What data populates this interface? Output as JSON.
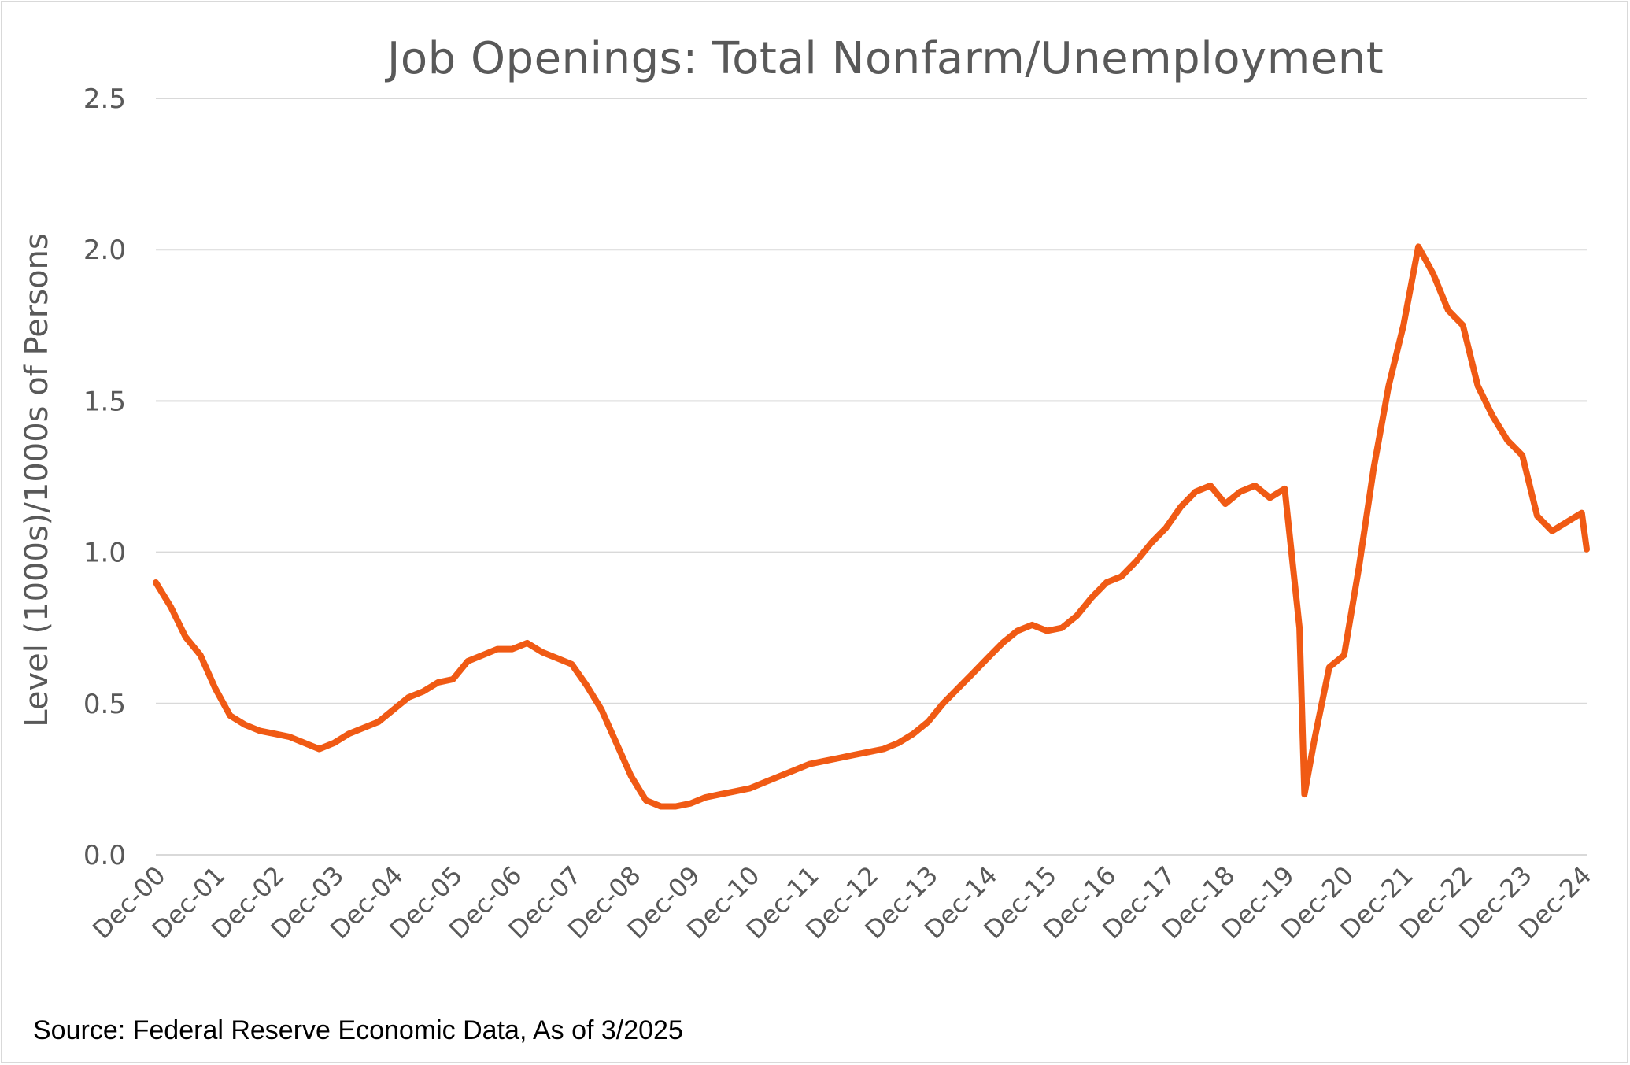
{
  "chart_data": {
    "type": "line",
    "title": "Job Openings: Total Nonfarm/Unemployment",
    "ylabel": "Level (1000s)/1000s of Persons",
    "xlabel": "",
    "source": "Source: Federal Reserve Economic Data, As of 3/2025",
    "ylim": [
      0,
      2.5
    ],
    "y_ticks": [
      "0.0",
      "0.5",
      "1.0",
      "1.5",
      "2.0",
      "2.5"
    ],
    "x_ticks": [
      "Dec-00",
      "Dec-01",
      "Dec-02",
      "Dec-03",
      "Dec-04",
      "Dec-05",
      "Dec-06",
      "Dec-07",
      "Dec-08",
      "Dec-09",
      "Dec-10",
      "Dec-11",
      "Dec-12",
      "Dec-13",
      "Dec-14",
      "Dec-15",
      "Dec-16",
      "Dec-17",
      "Dec-18",
      "Dec-19",
      "Dec-20",
      "Dec-21",
      "Dec-22",
      "Dec-23",
      "Dec-24"
    ],
    "grid": "horizontal",
    "line_color": "#f05a14",
    "series": [
      {
        "x": [
          "Dec-00",
          "Mar-01",
          "Jun-01",
          "Sep-01",
          "Dec-01",
          "Mar-02",
          "Jun-02",
          "Sep-02",
          "Dec-02",
          "Mar-03",
          "Jun-03",
          "Sep-03",
          "Dec-03",
          "Mar-04",
          "Jun-04",
          "Sep-04",
          "Dec-04",
          "Mar-05",
          "Jun-05",
          "Sep-05",
          "Dec-05",
          "Mar-06",
          "Jun-06",
          "Sep-06",
          "Dec-06",
          "Mar-07",
          "Jun-07",
          "Sep-07",
          "Dec-07",
          "Mar-08",
          "Jun-08",
          "Sep-08",
          "Dec-08",
          "Mar-09",
          "Jun-09",
          "Sep-09",
          "Dec-09",
          "Mar-10",
          "Jun-10",
          "Sep-10",
          "Dec-10",
          "Mar-11",
          "Jun-11",
          "Sep-11",
          "Dec-11",
          "Mar-12",
          "Jun-12",
          "Sep-12",
          "Dec-12",
          "Mar-13",
          "Jun-13",
          "Sep-13",
          "Dec-13",
          "Mar-14",
          "Jun-14",
          "Sep-14",
          "Dec-14",
          "Mar-15",
          "Jun-15",
          "Sep-15",
          "Dec-15",
          "Mar-16",
          "Jun-16",
          "Sep-16",
          "Dec-16",
          "Mar-17",
          "Jun-17",
          "Sep-17",
          "Dec-17",
          "Mar-18",
          "Jun-18",
          "Sep-18",
          "Dec-18",
          "Mar-19",
          "Jun-19",
          "Sep-19",
          "Dec-19",
          "Mar-20",
          "Apr-20",
          "Jun-20",
          "Sep-20",
          "Dec-20",
          "Mar-21",
          "Jun-21",
          "Sep-21",
          "Dec-21",
          "Mar-22",
          "Jun-22",
          "Sep-22",
          "Dec-22",
          "Mar-23",
          "Jun-23",
          "Sep-23",
          "Dec-23",
          "Mar-24",
          "Jun-24",
          "Sep-24",
          "Dec-24",
          "Jan-25"
        ],
        "values": [
          0.9,
          0.82,
          0.72,
          0.66,
          0.55,
          0.46,
          0.43,
          0.41,
          0.4,
          0.39,
          0.37,
          0.35,
          0.37,
          0.4,
          0.42,
          0.44,
          0.48,
          0.52,
          0.54,
          0.57,
          0.58,
          0.64,
          0.66,
          0.68,
          0.68,
          0.7,
          0.67,
          0.65,
          0.63,
          0.56,
          0.48,
          0.37,
          0.26,
          0.18,
          0.16,
          0.16,
          0.17,
          0.19,
          0.2,
          0.21,
          0.22,
          0.24,
          0.26,
          0.28,
          0.3,
          0.31,
          0.32,
          0.33,
          0.34,
          0.35,
          0.37,
          0.4,
          0.44,
          0.5,
          0.55,
          0.6,
          0.65,
          0.7,
          0.74,
          0.76,
          0.74,
          0.75,
          0.79,
          0.85,
          0.9,
          0.92,
          0.97,
          1.03,
          1.08,
          1.15,
          1.2,
          1.22,
          1.16,
          1.2,
          1.22,
          1.18,
          1.21,
          0.75,
          0.2,
          0.38,
          0.62,
          0.66,
          0.95,
          1.28,
          1.55,
          1.75,
          2.01,
          1.92,
          1.8,
          1.75,
          1.55,
          1.45,
          1.37,
          1.32,
          1.12,
          1.07,
          1.1,
          1.13,
          1.01
        ]
      }
    ]
  }
}
